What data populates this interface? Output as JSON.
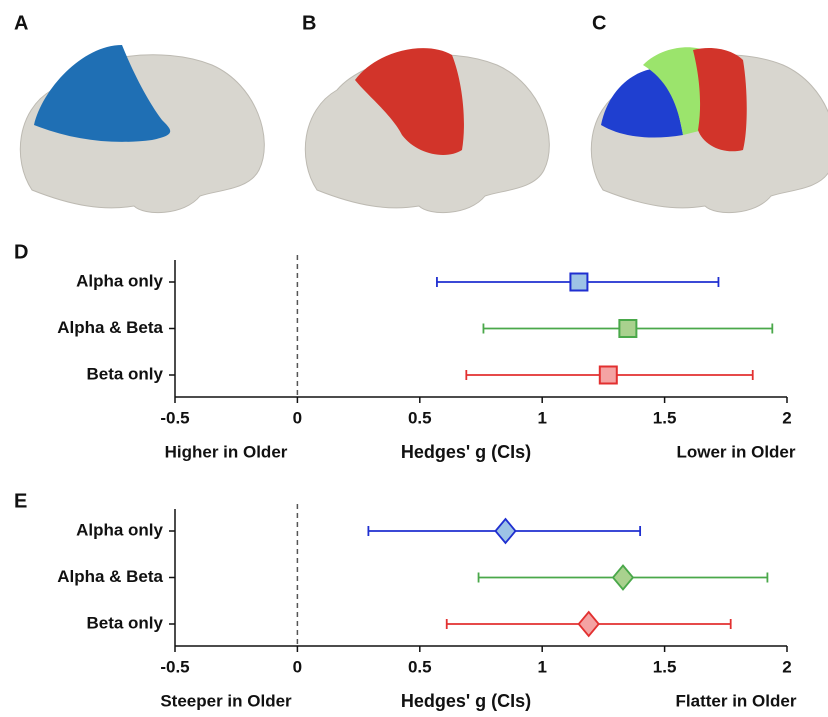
{
  "brain_panels": [
    {
      "label": "A"
    },
    {
      "label": "B"
    },
    {
      "label": "C"
    }
  ],
  "chart_data": [
    {
      "type": "forest",
      "panel_label": "D",
      "xlabel": "Hedges' g (CIs)",
      "left_annotation": "Higher in Older",
      "right_annotation": "Lower in Older",
      "marker": "square",
      "xlim": [
        -0.5,
        2
      ],
      "xticks": [
        -0.5,
        0,
        0.5,
        1,
        1.5,
        2
      ],
      "reference_line": 0,
      "series": [
        {
          "name": "Alpha only",
          "color": "#1f2fd0",
          "fill": "#9dc3e6",
          "values": [
            1.15
          ],
          "ci_low": [
            0.57
          ],
          "ci_high": [
            1.72
          ]
        },
        {
          "name": "Alpha & Beta",
          "color": "#4aa84a",
          "fill": "#a9d18e",
          "values": [
            1.35
          ],
          "ci_low": [
            0.76
          ],
          "ci_high": [
            1.94
          ]
        },
        {
          "name": "Beta only",
          "color": "#e23030",
          "fill": "#f4a3a3",
          "values": [
            1.27
          ],
          "ci_low": [
            0.69
          ],
          "ci_high": [
            1.86
          ]
        }
      ]
    },
    {
      "type": "forest",
      "panel_label": "E",
      "xlabel": "Hedges' g (CIs)",
      "left_annotation": "Steeper in Older",
      "right_annotation": "Flatter in Older",
      "marker": "diamond",
      "xlim": [
        -0.5,
        2
      ],
      "xticks": [
        -0.5,
        0,
        0.5,
        1,
        1.5,
        2
      ],
      "reference_line": 0,
      "series": [
        {
          "name": "Alpha only",
          "color": "#1f2fd0",
          "fill": "#9dc3e6",
          "values": [
            0.85
          ],
          "ci_low": [
            0.29
          ],
          "ci_high": [
            1.4
          ]
        },
        {
          "name": "Alpha & Beta",
          "color": "#4aa84a",
          "fill": "#a9d18e",
          "values": [
            1.33
          ],
          "ci_low": [
            0.74
          ],
          "ci_high": [
            1.92
          ]
        },
        {
          "name": "Beta only",
          "color": "#e23030",
          "fill": "#f4a3a3",
          "values": [
            1.19
          ],
          "ci_low": [
            0.61
          ],
          "ci_high": [
            1.77
          ]
        }
      ]
    }
  ]
}
